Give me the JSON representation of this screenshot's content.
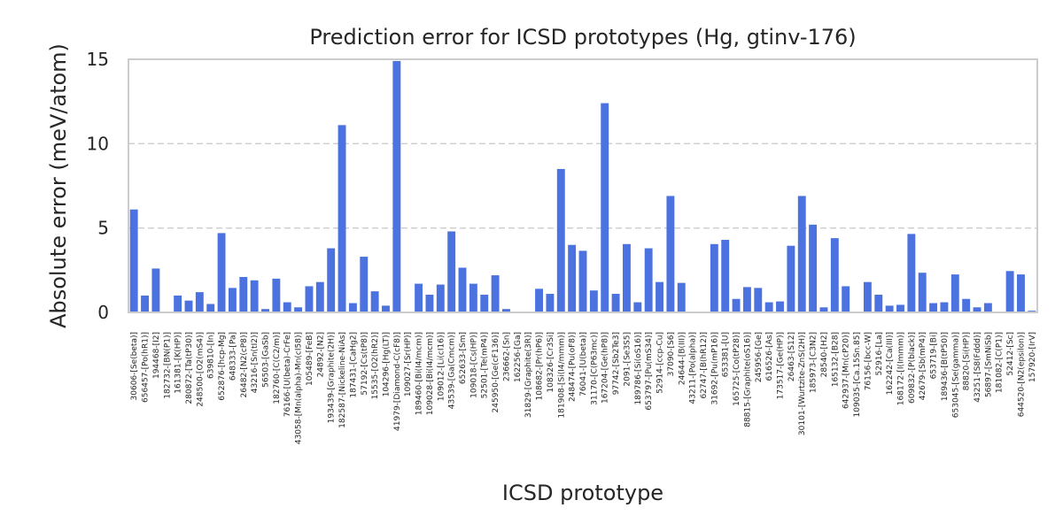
{
  "chart_data": {
    "type": "bar",
    "title": "Prediction error for ICSD prototypes (Hg, gtinv-176)",
    "xlabel": "ICSD prototype",
    "ylabel": "Absolute error (meV/atom)",
    "ylim": [
      0,
      15
    ],
    "yticks": [
      0,
      5,
      10,
      15
    ],
    "grid": true,
    "bar_color": "#4c72e0",
    "categories": [
      "30606-[Se(beta)]",
      "656457-[Po(hR1)]",
      "194468-[I2]",
      "182732-[BN(P1)]",
      "161381-[K(HP)]",
      "280872-[Ta(tP30)]",
      "248500-[O2(mS4)]",
      "639810-[In]",
      "652876-[hcp-Mg]",
      "648333-[Pa]",
      "26482-[N2(cP8)]",
      "43216-[Sn(tI2)]",
      "56503-[GaSb]",
      "182760-[C(C2/m)]",
      "76166-[U(beta)-CrFe]",
      "43058-[Mn(alpha)-Mn(cI58)]",
      "105489-[FeB]",
      "24892-[N2]",
      "193439-[Graphite(2H)]",
      "182587-[Nickeline-NiAs]",
      "187431-[CaHg2]",
      "57192-[Cs(tP8)]",
      "15535-[O2(hR2)]",
      "104296-[Hg(LT)]",
      "41979-[Diamond-C(cF8)]",
      "109027-[Sr(HP)]",
      "189460-[Bi(I4/mcm)]",
      "109028-[Bi(I4/mcm)]",
      "109012-[Li(cI16)]",
      "43539-[Ga(Cmcm)]",
      "652633-[Sm]",
      "109018-[Cs(HP)]",
      "52501-[Te(mP4)]",
      "245950-[Ge(cF136)]",
      "236662-[Sn]",
      "162256-[Ga]",
      "31829-[Graphite(3R)]",
      "108682-[Pr(hP6)]",
      "108326-[Cr3Si]",
      "181908-[Si(I4/mmm)]",
      "248474-[Pu(oF8)]",
      "76041-[U(beta)]",
      "31170-[C(P63mc)]",
      "167204-[Ge(hP8)]",
      "97742-[Sb2Te3]",
      "2091-[Se3S5]",
      "189786-[Si(oS16)]",
      "653797-[Pu(mS34)]",
      "52914-[ccp-Cu]",
      "37090-[S6]",
      "24644-[B(III)]",
      "43211-[Po(alpha)]",
      "62747-[B(hR12)]",
      "31692-[Pu(mP16)]",
      "653381-[U]",
      "165725-[Co(tP28)]",
      "88815-[Graphite(oS16)]",
      "245956-[Ge]",
      "616526-[As]",
      "173517-[Ge(HP)]",
      "26463-[S12]",
      "30101-[Wurtzite-ZnS(2H)]",
      "185973-[C3N2]",
      "28540-[H2]",
      "165132-[B28]",
      "642937-[Mn(cP20)]",
      "109035-[Ca.15Sn.85]",
      "76156-[bcc-W]",
      "52916-[La]",
      "162242-[Ca(III)]",
      "168172-[I(Immm)]",
      "609832-[P(black)]",
      "42679-[Sb(mP4)]",
      "653719-[Bi]",
      "189436-[B(tP50)]",
      "653045-[Se(gamma)]",
      "88820-[Si(HP)]",
      "43251-[S8(Fddd)]",
      "56897-[SmNiSb]",
      "181082-[C(P1)]",
      "52412-[Sc]",
      "644520-[N2(epsilon)]",
      "157920-[IrV]"
    ],
    "values": [
      6.1,
      1.0,
      2.6,
      0.0,
      1.0,
      0.7,
      1.2,
      0.5,
      4.7,
      1.45,
      2.1,
      1.9,
      0.2,
      2.0,
      0.6,
      0.3,
      1.55,
      1.8,
      3.8,
      11.1,
      0.55,
      3.3,
      1.25,
      0.4,
      14.9,
      0.0,
      1.7,
      1.05,
      1.65,
      4.8,
      2.65,
      1.7,
      1.05,
      2.2,
      0.2,
      0.0,
      0.0,
      1.4,
      1.1,
      8.5,
      4.0,
      3.65,
      1.3,
      12.4,
      1.1,
      4.05,
      0.6,
      3.8,
      1.8,
      6.9,
      1.75,
      0.0,
      0.0,
      4.05,
      4.3,
      0.8,
      1.5,
      1.45,
      0.6,
      0.65,
      3.95,
      6.9,
      5.2,
      0.3,
      4.4,
      1.55,
      0.0,
      1.8,
      1.05,
      0.4,
      0.45,
      4.65,
      2.35,
      0.55,
      0.6,
      2.25,
      0.8,
      0.3,
      0.55,
      0.0,
      2.45,
      2.25,
      0.1
    ]
  }
}
